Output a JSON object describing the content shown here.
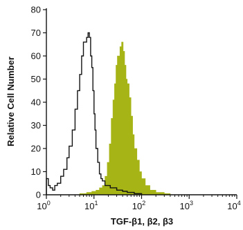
{
  "chart_data": {
    "type": "area",
    "xlabel": "TGF-β1, β2, β3",
    "ylabel": "Relative Cell Number",
    "x_scale": "log",
    "xlim": [
      1,
      10000
    ],
    "ylim": [
      0,
      80
    ],
    "grid": false,
    "legend": "none",
    "x_ticks": [
      {
        "value": 1,
        "base": "10",
        "exp": "0"
      },
      {
        "value": 10,
        "base": "10",
        "exp": "1"
      },
      {
        "value": 100,
        "base": "10",
        "exp": "2"
      },
      {
        "value": 1000,
        "base": "10",
        "exp": "3"
      },
      {
        "value": 10000,
        "base": "10",
        "exp": "4"
      }
    ],
    "y_ticks": [
      0,
      10,
      20,
      30,
      40,
      50,
      60,
      70,
      80
    ],
    "series": [
      {
        "style": "outline",
        "color": "#111111",
        "x": [
          1.0,
          1.1,
          1.2,
          1.35,
          1.5,
          1.7,
          2.0,
          2.3,
          2.7,
          3.0,
          3.5,
          4.0,
          4.5,
          5.0,
          5.5,
          6.0,
          6.5,
          7.0,
          7.5,
          8.0,
          8.5,
          9.0,
          9.5,
          10.0,
          10.5,
          11.0,
          12.0,
          13.0,
          14.0,
          15.0,
          17.0,
          19.0,
          22.0,
          26.0,
          30.0,
          40.0,
          50.0,
          70.0,
          100.0
        ],
        "y": [
          7,
          4,
          3,
          2,
          4,
          5,
          8,
          11,
          16,
          21,
          28,
          37,
          45,
          52,
          60,
          66,
          66,
          68,
          70,
          68,
          60,
          55,
          45,
          35,
          28,
          20,
          14,
          9,
          7,
          6,
          4,
          4,
          3,
          3,
          2,
          1.5,
          1,
          0.5,
          0
        ]
      },
      {
        "style": "filled",
        "color": "#a6b416",
        "x": [
          5.0,
          7.0,
          9.0,
          11.0,
          13.0,
          15.0,
          17.0,
          19.0,
          21.0,
          23.0,
          25.0,
          27.0,
          29.0,
          31.0,
          33.0,
          35.0,
          38.0,
          41.0,
          44.0,
          47.0,
          50.0,
          55.0,
          60.0,
          65.0,
          70.0,
          80.0,
          90.0,
          100.0,
          120.0,
          150.0,
          200.0,
          300.0,
          400.0
        ],
        "y": [
          0.5,
          1,
          1.5,
          2,
          3,
          4,
          8,
          14,
          22,
          33,
          41,
          48,
          56,
          60,
          60,
          64,
          66,
          62,
          56,
          50,
          48,
          42,
          34,
          26,
          20,
          15,
          10,
          7,
          4,
          2,
          1,
          0.5,
          0
        ]
      }
    ]
  }
}
